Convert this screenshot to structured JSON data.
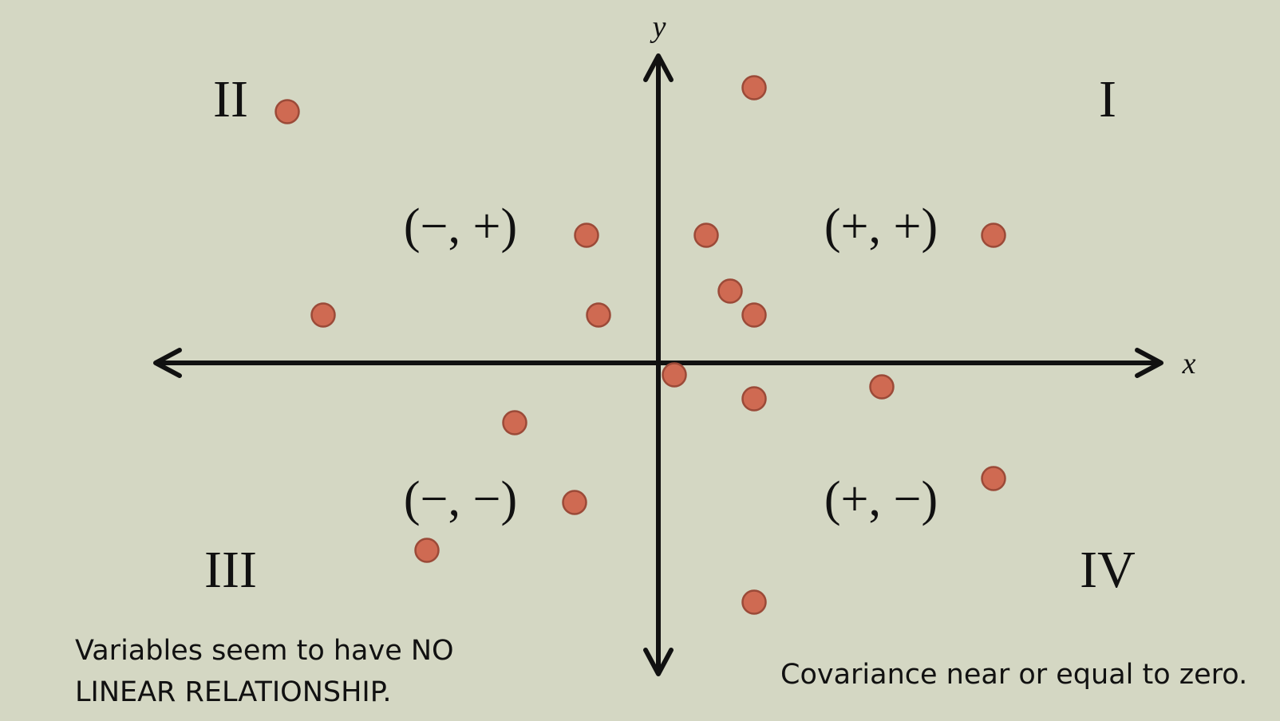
{
  "colors": {
    "background": "#d4d7c3",
    "axis": "#111111",
    "point_fill": "#cf6a52",
    "point_stroke": "#9b4a38"
  },
  "quadrants": {
    "q1": {
      "numeral": "I",
      "sign": "(+, +)"
    },
    "q2": {
      "numeral": "II",
      "sign": "(−, +)"
    },
    "q3": {
      "numeral": "III",
      "sign": "(−, −)"
    },
    "q4": {
      "numeral": "IV",
      "sign": "(+, −)"
    }
  },
  "notes": {
    "left_line1": "Variables seem to have NO",
    "left_line2": "LINEAR RELATIONSHIP.",
    "right": "Covariance near or equal to zero."
  },
  "chart_data": {
    "type": "scatter",
    "xlabel": "x",
    "ylabel": "y",
    "xlim": [
      -6.3,
      6.3
    ],
    "ylim": [
      -4,
      4
    ],
    "grid": false,
    "legend": "none",
    "points": [
      {
        "x": -4.65,
        "y": 3.15
      },
      {
        "x": -4.2,
        "y": 0.6
      },
      {
        "x": -0.9,
        "y": 1.6
      },
      {
        "x": -0.75,
        "y": 0.6
      },
      {
        "x": -1.8,
        "y": -0.75
      },
      {
        "x": -1.05,
        "y": -1.75
      },
      {
        "x": -2.9,
        "y": -2.35
      },
      {
        "x": 1.2,
        "y": 3.45
      },
      {
        "x": 0.6,
        "y": 1.6
      },
      {
        "x": 0.9,
        "y": 0.9
      },
      {
        "x": 1.2,
        "y": 0.6
      },
      {
        "x": 0.2,
        "y": -0.15
      },
      {
        "x": 1.2,
        "y": -0.45
      },
      {
        "x": 2.8,
        "y": -0.3
      },
      {
        "x": 4.2,
        "y": 1.6
      },
      {
        "x": 4.2,
        "y": -1.45
      },
      {
        "x": 1.2,
        "y": -3.0
      }
    ]
  }
}
